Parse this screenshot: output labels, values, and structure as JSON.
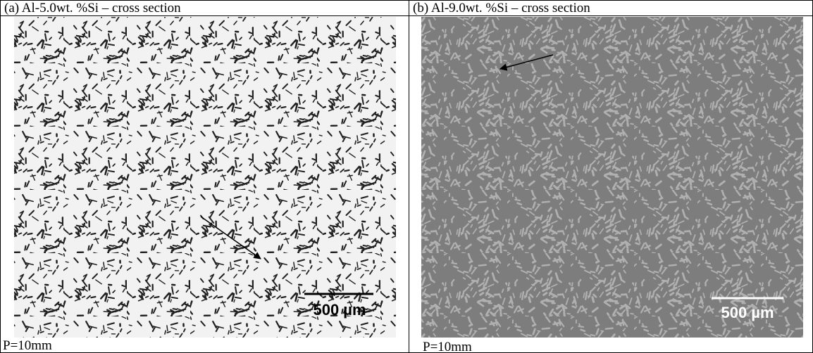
{
  "panels": [
    {
      "title": "(a) Al-5.0wt. %Si – cross section",
      "scale_label": "500 µm",
      "caption": "P=10mm"
    },
    {
      "title": "(b) Al-9.0wt. %Si – cross section",
      "scale_label": "500 µm",
      "caption": "P=10mm"
    }
  ]
}
